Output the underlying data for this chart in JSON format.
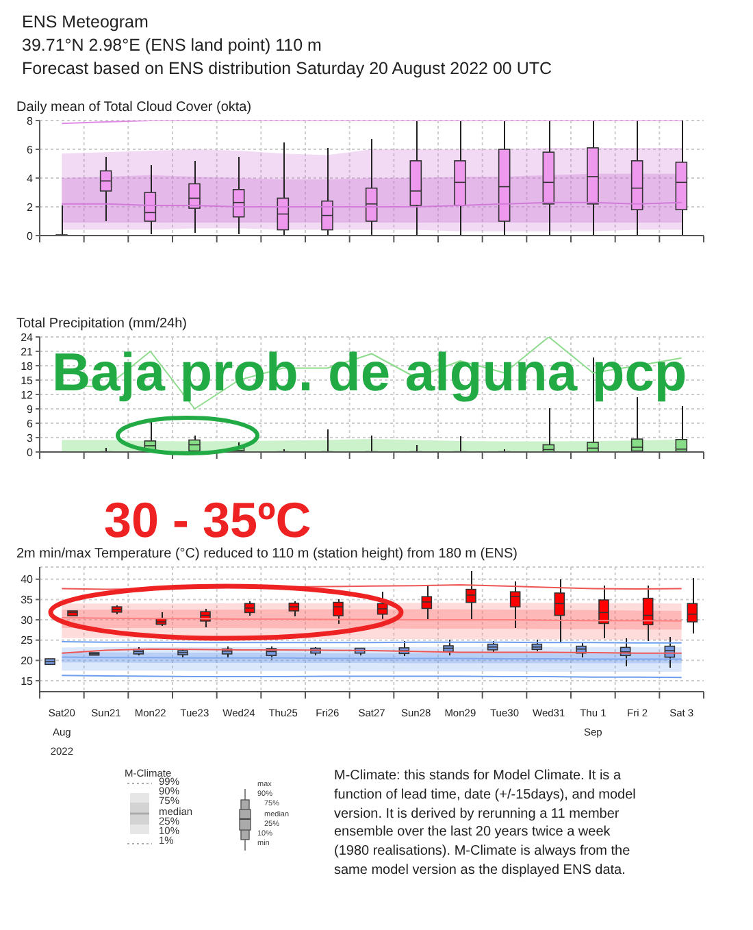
{
  "chart_data": [
    {
      "type": "other",
      "title": "ENS Meteogram",
      "subtitle": "39.71°N 2.98°E (ENS land point) 110 m",
      "annotations": [
        "Forecast based on ENS distribution Saturday 20 August 2022 00 UTC"
      ]
    },
    {
      "type": "box",
      "title": "Daily mean of Total Cloud Cover (okta)",
      "categories": [
        null,
        null,
        null,
        null,
        null,
        null,
        null,
        null,
        null,
        null,
        null,
        null,
        null,
        null,
        null
      ],
      "ylim": [
        0,
        8
      ],
      "yticks": [
        0,
        2,
        4,
        6,
        8
      ],
      "grid": true,
      "tick_labels": "y",
      "series": [
        {
          "type": "line",
          "color": "#d27ada",
          "values": [
            2.2,
            2.2,
            2.1,
            2.1,
            2.0,
            2.0,
            2.0,
            2.0,
            2.0,
            2.1,
            2.2,
            2.3,
            2.3,
            2.2,
            2.3
          ],
          "lower": [
            0.4,
            0.4,
            0.4,
            0.5,
            0.5,
            0.4,
            0.4,
            0.4,
            0.4,
            0.3,
            0.3,
            0.3,
            0.3,
            0.4,
            0.4
          ],
          "upper": [
            5.7,
            5.8,
            5.9,
            6.0,
            5.9,
            5.7,
            5.6,
            6.0,
            6.0,
            6.0,
            6.0,
            6.1,
            6.1,
            6.1,
            6.1
          ]
        },
        {
          "type": "line",
          "color": "#c266cc",
          "values": [
            null,
            null,
            null,
            null,
            null,
            null,
            null,
            null,
            null,
            null,
            null,
            null,
            null,
            null,
            null
          ],
          "lower": [
            0.9,
            0.9,
            0.9,
            0.9,
            0.9,
            0.9,
            0.9,
            0.9,
            0.9,
            0.9,
            0.9,
            0.9,
            0.9,
            0.9,
            0.9
          ],
          "upper": [
            4.0,
            4.1,
            4.2,
            4.1,
            4.0,
            3.9,
            3.9,
            4.0,
            4.0,
            4.1,
            4.1,
            4.2,
            4.3,
            4.3,
            4.3
          ]
        },
        {
          "type": "line",
          "color": "#e08ae6",
          "values": [
            7.8,
            7.9,
            8,
            8,
            8,
            8,
            8,
            8,
            8,
            8,
            8,
            8,
            8,
            8,
            8
          ]
        },
        {
          "type": "box",
          "color": "#ee99ee",
          "boxes": [
            {
              "low": 0,
              "q1": 0,
              "median": 0,
              "q3": 0.05,
              "high": 2.1
            },
            {
              "low": 1.0,
              "q1": 3.1,
              "median": 3.8,
              "q3": 4.5,
              "high": 5.5
            },
            {
              "low": 0.1,
              "q1": 1.0,
              "median": 1.6,
              "q3": 3.0,
              "high": 4.9
            },
            {
              "low": 0.2,
              "q1": 1.9,
              "median": 2.6,
              "q3": 3.6,
              "high": 5.2
            },
            {
              "low": 0.1,
              "q1": 1.3,
              "median": 2.3,
              "q3": 3.2,
              "high": 5.5
            },
            {
              "low": 0,
              "q1": 0.4,
              "median": 1.5,
              "q3": 2.6,
              "high": 6.5
            },
            {
              "low": 0,
              "q1": 0.4,
              "median": 1.4,
              "q3": 2.4,
              "high": 6.1
            },
            {
              "low": 0,
              "q1": 1.0,
              "median": 2.2,
              "q3": 3.3,
              "high": 6.7
            },
            {
              "low": 0,
              "q1": 2.1,
              "median": 3.1,
              "q3": 5.2,
              "high": 8
            },
            {
              "low": 0,
              "q1": 2.1,
              "median": 3.7,
              "q3": 5.2,
              "high": 8
            },
            {
              "low": 0,
              "q1": 1.0,
              "median": 3.4,
              "q3": 6.0,
              "high": 8
            },
            {
              "low": 0,
              "q1": 2.2,
              "median": 3.7,
              "q3": 5.8,
              "high": 8
            },
            {
              "low": 0,
              "q1": 2.2,
              "median": 4.1,
              "q3": 6.1,
              "high": 8
            },
            {
              "low": 0,
              "q1": 1.8,
              "median": 3.3,
              "q3": 5.2,
              "high": 8
            },
            {
              "low": 0,
              "q1": 1.8,
              "median": 3.7,
              "q3": 5.1,
              "high": 8
            }
          ]
        }
      ]
    },
    {
      "type": "box",
      "title": "Total Precipitation (mm/24h)",
      "categories": [
        null,
        null,
        null,
        null,
        null,
        null,
        null,
        null,
        null,
        null,
        null,
        null,
        null,
        null,
        null
      ],
      "ylim": [
        0,
        24
      ],
      "yticks": [
        0,
        3,
        6,
        9,
        12,
        15,
        18,
        21,
        24
      ],
      "grid": true,
      "tick_labels": "y",
      "annotations": [
        "Baja prob. de alguna pcp"
      ],
      "series": [
        {
          "type": "area",
          "color": "#ccf2cc",
          "values": [
            2.5,
            2.5,
            2.3,
            2.2,
            2.3,
            2.4,
            2.5,
            2.7,
            2.5,
            2.3,
            2.2,
            2.2,
            2.3,
            2.4,
            2.6
          ]
        },
        {
          "type": "line",
          "color": "#8fdc8f",
          "values": [
            14,
            13.5,
            21,
            9,
            15,
            17.5,
            17.5,
            20.5,
            15.5,
            19,
            16.5,
            24,
            16.5,
            18,
            19.6
          ]
        },
        {
          "type": "box",
          "color": "#88dd88",
          "boxes": [
            null,
            {
              "low": 0,
              "q1": 0,
              "median": 0,
              "q3": 0.05,
              "high": 0.8
            },
            {
              "low": 0,
              "q1": 0.3,
              "median": 1.3,
              "q3": 2.3,
              "high": 6.5
            },
            {
              "low": 0,
              "q1": 0.2,
              "median": 1.5,
              "q3": 2.5,
              "high": 3.5
            },
            {
              "low": 0,
              "q1": 0,
              "median": 0.3,
              "q3": 0.8,
              "high": 2
            },
            {
              "low": 0,
              "q1": 0,
              "median": 0,
              "q3": 0.05,
              "high": 0.6
            },
            {
              "low": 0,
              "q1": 0,
              "median": 0,
              "q3": 0.05,
              "high": 4.7
            },
            {
              "low": 0,
              "q1": 0,
              "median": 0,
              "q3": 0.05,
              "high": 3.4
            },
            {
              "low": 0,
              "q1": 0,
              "median": 0,
              "q3": 0.05,
              "high": 1.4
            },
            {
              "low": 0,
              "q1": 0,
              "median": 0,
              "q3": 0.05,
              "high": 3.3
            },
            {
              "low": 0,
              "q1": 0,
              "median": 0,
              "q3": 0.05,
              "high": 0.6
            },
            {
              "low": 0,
              "q1": 0,
              "median": 0.5,
              "q3": 1.5,
              "high": 9.2
            },
            {
              "low": 0,
              "q1": 0,
              "median": 0.8,
              "q3": 2.0,
              "high": 19.7
            },
            {
              "low": 0,
              "q1": 0.2,
              "median": 1.0,
              "q3": 2.7,
              "high": 11.4
            },
            {
              "low": 0,
              "q1": 0.1,
              "median": 0.6,
              "q3": 2.6,
              "high": 9.6
            }
          ]
        }
      ]
    },
    {
      "type": "box",
      "title": "2m min/max Temperature (°C) reduced to 110 m (station height) from 180 m (ENS)",
      "categories": [
        "Sat20\nAug\n2022",
        "Sun21",
        "Mon22",
        "Tue23",
        "Wed24",
        "Thu25",
        "Fri26",
        "Sat27",
        "Sun28",
        "Mon29",
        "Tue30",
        "Wed31",
        "Thu 1\nSep",
        "Fri 2",
        "Sat 3"
      ],
      "ylim": [
        12.3,
        43
      ],
      "yticks": [
        15,
        20,
        25,
        30,
        35,
        40
      ],
      "grid": true,
      "annotations": [
        "30 - 35ºC"
      ],
      "series": [
        {
          "type": "line",
          "color": "#ff8080",
          "values": [
            30.5,
            30.4,
            30.3,
            30.3,
            30.2,
            30.2,
            30.1,
            30.1,
            30.0,
            30.0,
            30.0,
            29.9,
            29.8,
            29.8,
            29.7
          ],
          "lower": [
            25.5,
            25.5,
            25.4,
            25.4,
            25.4,
            25.4,
            25.3,
            25.3,
            25.3,
            25.2,
            25.2,
            25.2,
            25.1,
            25.1,
            25.0
          ],
          "upper": [
            34,
            34,
            34,
            34,
            34.1,
            34.1,
            34.1,
            34.1,
            34.2,
            34.2,
            34.2,
            34.2,
            34.1,
            34.1,
            34.0
          ]
        },
        {
          "type": "line",
          "color": "#ff5c5c",
          "values": [
            null,
            null,
            null,
            null,
            null,
            null,
            null,
            null,
            null,
            null,
            null,
            null,
            null,
            null,
            null
          ],
          "lower": [
            28,
            28,
            28,
            28,
            28,
            27.9,
            27.9,
            27.9,
            27.8,
            27.8,
            27.8,
            27.7,
            27.7,
            27.6,
            27.6
          ],
          "upper": [
            32.5,
            32.5,
            32.5,
            32.5,
            32.5,
            32.6,
            32.6,
            32.6,
            32.6,
            32.6,
            32.5,
            32.5,
            32.4,
            32.3,
            32.2
          ]
        },
        {
          "type": "line",
          "color": "#ee5555",
          "values": [
            37.7,
            37.5,
            37.6,
            37.8,
            38.0,
            38.1,
            38.2,
            38.3,
            38.4,
            38.6,
            38.3,
            38.0,
            37.7,
            37.6,
            37.7
          ]
        },
        {
          "type": "line",
          "color": "#ee5555",
          "values": [
            21.8,
            22.5,
            22.8,
            22.7,
            22.6,
            22.6,
            22.5,
            22.4,
            22.2,
            22.0,
            22.0,
            22.0,
            21.9,
            21.8,
            21.8
          ]
        },
        {
          "type": "line",
          "color": "#7fa8ee",
          "values": [
            20.8,
            20.7,
            20.7,
            20.6,
            20.6,
            20.6,
            20.5,
            20.5,
            20.5,
            20.5,
            20.4,
            20.4,
            20.3,
            20.3,
            20.3
          ],
          "lower": [
            17.5,
            17.5,
            17.5,
            17.4,
            17.4,
            17.4,
            17.4,
            17.3,
            17.3,
            17.3,
            17.3,
            17.2,
            17.2,
            17.2,
            17.2
          ],
          "upper": [
            23.2,
            23.3,
            23.3,
            23.3,
            23.3,
            23.3,
            23.3,
            23.3,
            23.3,
            23.3,
            23.3,
            23.3,
            23.3,
            23.3,
            23.3
          ]
        },
        {
          "type": "line",
          "color": "#5f8ee6",
          "values": [
            null,
            null,
            null,
            null,
            null,
            null,
            null,
            null,
            null,
            null,
            null,
            null,
            null,
            null,
            null
          ],
          "lower": [
            19.5,
            19.5,
            19.4,
            19.4,
            19.4,
            19.4,
            19.4,
            19.4,
            19.3,
            19.3,
            19.3,
            19.3,
            19.3,
            19.3,
            19.3
          ],
          "upper": [
            22,
            22,
            21.9,
            21.9,
            21.9,
            21.9,
            21.8,
            21.8,
            21.8,
            21.8,
            21.8,
            21.7,
            21.7,
            21.7,
            21.7
          ]
        },
        {
          "type": "line",
          "color": "#6f9ef0",
          "values": [
            24.6,
            24.5,
            24.5,
            24.4,
            24.4,
            24.4,
            24.4,
            24.4,
            24.5,
            24.5,
            24.5,
            24.4,
            24.4,
            24.3,
            24.3
          ]
        },
        {
          "type": "line",
          "color": "#6f9ef0",
          "values": [
            16.3,
            16.2,
            16.1,
            16.0,
            16.0,
            16.0,
            16.1,
            16.1,
            16.1,
            16.1,
            16.0,
            16.0,
            15.9,
            15.9,
            15.8
          ]
        },
        {
          "type": "box",
          "color": "#7799dd",
          "boxes": [
            {
              "low": 19.0,
              "q1": 19.0,
              "median": 19.7,
              "q3": 20.4,
              "high": 20.4
            },
            {
              "low": 21.3,
              "q1": 21.3,
              "median": 21.6,
              "q3": 21.9,
              "high": 21.9
            },
            {
              "low": 21.2,
              "q1": 21.6,
              "median": 22.2,
              "q3": 22.7,
              "high": 23.2
            },
            {
              "low": 20.8,
              "q1": 21.4,
              "median": 21.9,
              "q3": 22.4,
              "high": 22.8
            },
            {
              "low": 20.8,
              "q1": 21.6,
              "median": 22.3,
              "q3": 22.8,
              "high": 23.5
            },
            {
              "low": 20.3,
              "q1": 21.2,
              "median": 22.2,
              "q3": 22.9,
              "high": 23.4
            },
            {
              "low": 21.2,
              "q1": 21.8,
              "median": 22.4,
              "q3": 23.0,
              "high": 23.3
            },
            {
              "low": 21.2,
              "q1": 21.8,
              "median": 22.4,
              "q3": 23.0,
              "high": 23.0
            },
            {
              "low": 21.0,
              "q1": 21.7,
              "median": 22.4,
              "q3": 23.1,
              "high": 24.8
            },
            {
              "low": 21.2,
              "q1": 22.2,
              "median": 23.0,
              "q3": 23.6,
              "high": 25.2
            },
            {
              "low": 22.0,
              "q1": 22.6,
              "median": 23.3,
              "q3": 24.0,
              "high": 24.8
            },
            {
              "low": 22.3,
              "q1": 22.7,
              "median": 23.3,
              "q3": 24.0,
              "high": 25.2
            },
            {
              "low": 20.8,
              "q1": 21.8,
              "median": 22.8,
              "q3": 23.5,
              "high": 24.4
            },
            {
              "low": 18.5,
              "q1": 21.2,
              "median": 22.1,
              "q3": 23.2,
              "high": 25.4
            },
            {
              "low": 18.2,
              "q1": 20.8,
              "median": 22.4,
              "q3": 23.5,
              "high": 25.8
            }
          ]
        },
        {
          "type": "box",
          "color": "#ff0000",
          "boxes": [
            {
              "low": 31.0,
              "q1": 31.0,
              "median": 31.8,
              "q3": 32.2,
              "high": 32.2
            },
            {
              "low": 31.3,
              "q1": 31.9,
              "median": 32.5,
              "q3": 33.2,
              "high": 33.5
            },
            {
              "low": 28.5,
              "q1": 28.9,
              "median": 29.5,
              "q3": 30.3,
              "high": 31.8
            },
            {
              "low": 28.2,
              "q1": 29.7,
              "median": 31.1,
              "q3": 32.0,
              "high": 32.7
            },
            {
              "low": 31.0,
              "q1": 31.8,
              "median": 32.9,
              "q3": 34.0,
              "high": 34.5
            },
            {
              "low": 30.8,
              "q1": 32.2,
              "median": 33.2,
              "q3": 34.1,
              "high": 34.5
            },
            {
              "low": 29.0,
              "q1": 31.0,
              "median": 33.2,
              "q3": 34.3,
              "high": 35.0
            },
            {
              "low": 30.0,
              "q1": 31.4,
              "median": 32.7,
              "q3": 34.0,
              "high": 37.0
            },
            {
              "low": 30.0,
              "q1": 32.8,
              "median": 34.4,
              "q3": 35.7,
              "high": 38.6
            },
            {
              "low": 30.0,
              "q1": 34.3,
              "median": 36.1,
              "q3": 37.5,
              "high": 42.0
            },
            {
              "low": 28.0,
              "q1": 33.2,
              "median": 35.7,
              "q3": 36.9,
              "high": 39.5
            },
            {
              "low": 24.5,
              "q1": 31.1,
              "median": 34.0,
              "q3": 36.6,
              "high": 40.0
            },
            {
              "low": 25.4,
              "q1": 29.1,
              "median": 31.8,
              "q3": 34.9,
              "high": 38.5
            },
            {
              "low": 24.7,
              "q1": 28.8,
              "median": 31.1,
              "q3": 35.3,
              "high": 38.5
            },
            {
              "low": 26.7,
              "q1": 29.5,
              "median": 31.4,
              "q3": 34.0,
              "high": 40.3
            }
          ]
        }
      ]
    },
    {
      "type": "other",
      "legend_title": "M-Climate",
      "annotations": [
        "99%",
        "90%",
        "75%",
        "median",
        "25%",
        "10%",
        "1%",
        "max",
        "90%",
        "75%",
        "median",
        "25%",
        "10%",
        "min",
        "M-Climate: this stands for Model Climate. It is a function of lead time, date (+/-15days), and model version. It is derived by rerunning a 11 member ensemble over the last 20 years twice a week (1980 realisations). M-Climate is always from the same model version as the displayed ENS data."
      ]
    }
  ]
}
